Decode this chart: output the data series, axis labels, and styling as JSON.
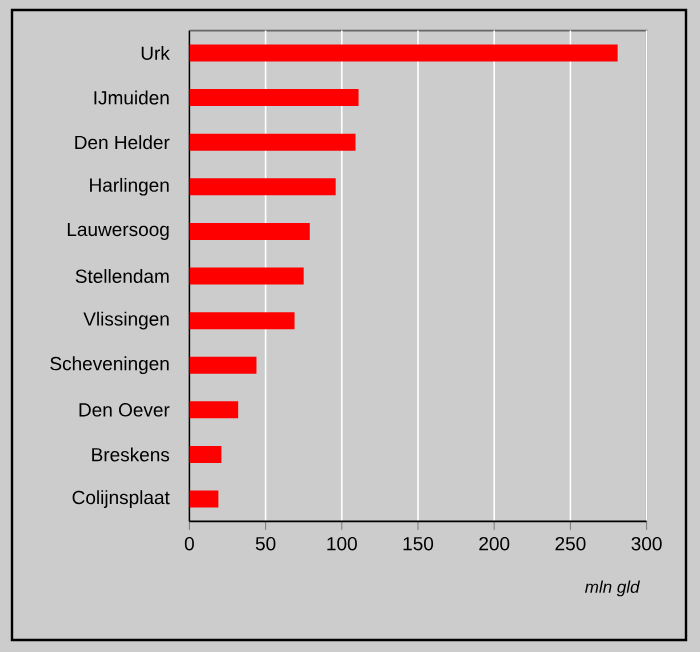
{
  "chart_data": {
    "type": "bar",
    "orientation": "horizontal",
    "xlabel": "mln gld",
    "categories": [
      "Urk",
      "IJmuiden",
      "Den Helder",
      "Harlingen",
      "Lauwersoog",
      "Stellendam",
      "Vlissingen",
      "Scheveningen",
      "Den Oever",
      "Breskens",
      "Colijnsplaat"
    ],
    "values": [
      281,
      111,
      109,
      96,
      79,
      75,
      69,
      44,
      32,
      21,
      19
    ],
    "color": "#ff0000",
    "xlim": [
      0,
      300
    ],
    "xticks": [
      0,
      50,
      100,
      150,
      200,
      250,
      300
    ],
    "grid": "x"
  }
}
